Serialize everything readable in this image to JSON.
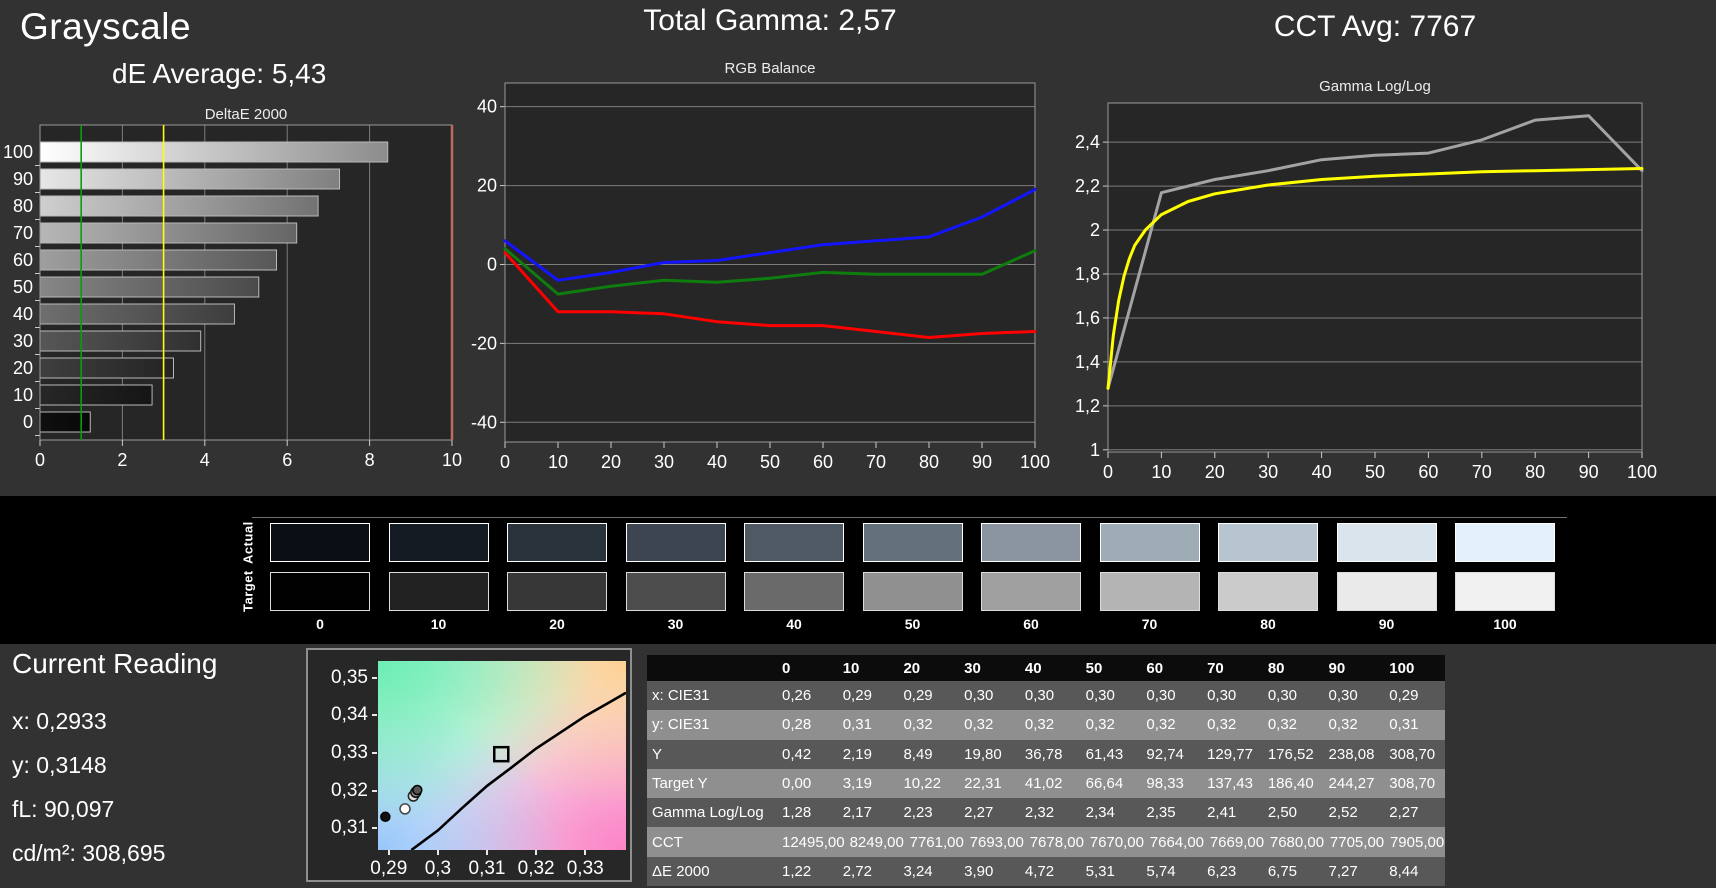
{
  "headers": {
    "grayscale_title": "Grayscale",
    "de_average": "dE Average: 5,43",
    "total_gamma": "Total Gamma: 2,57",
    "cct_avg": "CCT Avg: 7767"
  },
  "current_reading": {
    "title": "Current Reading",
    "x": "x: 0,2933",
    "y": "y: 0,3148",
    "fl": "fL: 90,097",
    "cdm2": "cd/m²: 308,695"
  },
  "swatches": {
    "row_labels": [
      "Actual",
      "Target"
    ],
    "levels": [
      "0",
      "10",
      "20",
      "30",
      "40",
      "50",
      "60",
      "70",
      "80",
      "90",
      "100"
    ],
    "actual": [
      "#0a0e15",
      "#151b23",
      "#2a323c",
      "#3d4650",
      "#4e5963",
      "#64707c",
      "#8b959f",
      "#9eacb5",
      "#b7c5d0",
      "#d9e4ec",
      "#e4f0fc"
    ],
    "target": [
      "#010101",
      "#222222",
      "#373737",
      "#4d4d4d",
      "#6a6a6a",
      "#909090",
      "#a0a0a0",
      "#b4b4b4",
      "#cbcbcb",
      "#eaeaea",
      "#f0f0f0"
    ]
  },
  "style": {
    "background": "#323232",
    "plot_background": "#262626",
    "plot_border": "#9a9a9a",
    "grid_color": "#7d7d7d",
    "tick_color": "#cccccc",
    "text_color": "#ffffff"
  },
  "chart_data": [
    {
      "id": "deltae",
      "type": "bar",
      "title": "DeltaE 2000",
      "orientation": "horizontal",
      "categories": [
        "100",
        "90",
        "80",
        "70",
        "60",
        "50",
        "40",
        "30",
        "20",
        "10",
        "0"
      ],
      "values": [
        8.44,
        7.27,
        6.75,
        6.23,
        5.74,
        5.31,
        4.72,
        3.9,
        3.24,
        2.72,
        1.22
      ],
      "xlim": [
        0,
        10
      ],
      "xticks": [
        0,
        2,
        4,
        6,
        8,
        10
      ],
      "bar_style": "grayscale-gradient",
      "reference_lines": [
        {
          "name": "good-threshold",
          "value": 1,
          "color": "#0e9b0e",
          "width": 1.6
        },
        {
          "name": "warn-threshold",
          "value": 3,
          "color": "#ffff00",
          "width": 1.6
        },
        {
          "name": "max-line",
          "value": 10,
          "color": "#bf6a5f",
          "width": 2.5
        }
      ]
    },
    {
      "id": "rgb_balance",
      "type": "line",
      "title": "RGB Balance",
      "x": [
        0,
        10,
        20,
        30,
        40,
        50,
        60,
        70,
        80,
        90,
        100
      ],
      "series": [
        {
          "name": "Red",
          "color": "#ff0000",
          "values": [
            3,
            -12,
            -12,
            -12.5,
            -14.5,
            -15.5,
            -15.5,
            -17,
            -18.5,
            -17.5,
            -17
          ]
        },
        {
          "name": "Green",
          "color": "#0e7d0e",
          "values": [
            4,
            -7.5,
            -5.5,
            -4,
            -4.5,
            -3.5,
            -2,
            -2.5,
            -2.5,
            -2.5,
            3.5
          ]
        },
        {
          "name": "Blue",
          "color": "#1414ff",
          "values": [
            6,
            -4,
            -2,
            0.5,
            1,
            3,
            5,
            6,
            7,
            12,
            19
          ]
        }
      ],
      "ylim": [
        -45,
        46
      ],
      "yticks": [
        40,
        20,
        0,
        -20,
        -40
      ],
      "ytick_labels": [
        "40",
        "20",
        "0",
        "-20",
        "-40"
      ],
      "xticks": [
        0,
        10,
        20,
        30,
        40,
        50,
        60,
        70,
        80,
        90,
        100
      ]
    },
    {
      "id": "gamma_loglog",
      "type": "line",
      "title": "Gamma Log/Log",
      "series": [
        {
          "name": "Measured gamma",
          "color": "#a3a3a3",
          "x": [
            0,
            10,
            20,
            30,
            40,
            50,
            60,
            70,
            80,
            90,
            100
          ],
          "values": [
            1.28,
            2.17,
            2.23,
            2.27,
            2.32,
            2.34,
            2.35,
            2.41,
            2.5,
            2.52,
            2.27
          ]
        },
        {
          "name": "Target gamma",
          "color": "#ffff00",
          "x": [
            0,
            1,
            2,
            3,
            4,
            5,
            7,
            10,
            15,
            20,
            30,
            40,
            50,
            60,
            70,
            80,
            90,
            100
          ],
          "values": [
            1.28,
            1.52,
            1.68,
            1.79,
            1.87,
            1.93,
            2.0,
            2.07,
            2.13,
            2.165,
            2.205,
            2.23,
            2.245,
            2.255,
            2.265,
            2.27,
            2.275,
            2.28
          ]
        }
      ],
      "ylim": [
        0.99,
        2.578
      ],
      "yticks": [
        2.4,
        2.2,
        2.0,
        1.8,
        1.6,
        1.4,
        1.2,
        1.0
      ],
      "ytick_labels": [
        "2,4",
        "2,2",
        "2",
        "1,8",
        "1,6",
        "1,4",
        "1,2",
        "1"
      ],
      "xticks": [
        0,
        10,
        20,
        30,
        40,
        50,
        60,
        70,
        80,
        90,
        100
      ]
    },
    {
      "id": "cie_diagram",
      "type": "scatter",
      "title": "CIE chromaticity detail",
      "xlim": [
        0.2878,
        0.3383
      ],
      "ylim": [
        0.3043,
        0.3544
      ],
      "xticks": [
        0.29,
        0.3,
        0.31,
        0.32,
        0.33
      ],
      "xtick_labels": [
        "0,29",
        "0,3",
        "0,31",
        "0,32",
        "0,33"
      ],
      "yticks": [
        0.35,
        0.34,
        0.33,
        0.32,
        0.31
      ],
      "ytick_labels": [
        "0,35",
        "0,34",
        "0,33",
        "0,32",
        "0,31"
      ],
      "locus": [
        [
          0.2946,
          0.3043
        ],
        [
          0.3,
          0.3095
        ],
        [
          0.305,
          0.3155
        ],
        [
          0.31,
          0.3213
        ],
        [
          0.315,
          0.3262
        ],
        [
          0.32,
          0.3312
        ],
        [
          0.325,
          0.3355
        ],
        [
          0.33,
          0.3398
        ],
        [
          0.335,
          0.3435
        ],
        [
          0.3383,
          0.346
        ]
      ],
      "target_square": {
        "x": 0.3129,
        "y": 0.3297
      },
      "points": [
        {
          "x": 0.2893,
          "y": 0.3131,
          "fill": "#111111",
          "stroke": "#000000",
          "r": 4.5
        },
        {
          "x": 0.2933,
          "y": 0.3152,
          "fill": "#ffffff",
          "stroke": "#444444",
          "r": 5
        },
        {
          "x": 0.295,
          "y": 0.3186,
          "fill": "#dddddd",
          "stroke": "#222222",
          "r": 5
        },
        {
          "x": 0.2955,
          "y": 0.3196,
          "fill": "#8a8a8a",
          "stroke": "#111111",
          "r": 5
        },
        {
          "x": 0.2958,
          "y": 0.3202,
          "fill": "#555555",
          "stroke": "#000000",
          "r": 4.5
        }
      ]
    },
    {
      "id": "measurement_table",
      "type": "table",
      "columns": [
        "",
        "0",
        "10",
        "20",
        "30",
        "40",
        "50",
        "60",
        "70",
        "80",
        "90",
        "100"
      ],
      "rows": [
        {
          "label": "x: CIE31",
          "values": [
            "0,26",
            "0,29",
            "0,29",
            "0,30",
            "0,30",
            "0,30",
            "0,30",
            "0,30",
            "0,30",
            "0,30",
            "0,29"
          ]
        },
        {
          "label": "y: CIE31",
          "values": [
            "0,28",
            "0,31",
            "0,32",
            "0,32",
            "0,32",
            "0,32",
            "0,32",
            "0,32",
            "0,32",
            "0,32",
            "0,31"
          ]
        },
        {
          "label": "Y",
          "values": [
            "0,42",
            "2,19",
            "8,49",
            "19,80",
            "36,78",
            "61,43",
            "92,74",
            "129,77",
            "176,52",
            "238,08",
            "308,70"
          ]
        },
        {
          "label": "Target Y",
          "values": [
            "0,00",
            "3,19",
            "10,22",
            "22,31",
            "41,02",
            "66,64",
            "98,33",
            "137,43",
            "186,40",
            "244,27",
            "308,70"
          ]
        },
        {
          "label": "Gamma Log/Log",
          "values": [
            "1,28",
            "2,17",
            "2,23",
            "2,27",
            "2,32",
            "2,34",
            "2,35",
            "2,41",
            "2,50",
            "2,52",
            "2,27"
          ]
        },
        {
          "label": "CCT",
          "values": [
            "12495,00",
            "8249,00",
            "7761,00",
            "7693,00",
            "7678,00",
            "7670,00",
            "7664,00",
            "7669,00",
            "7680,00",
            "7705,00",
            "7905,00"
          ]
        },
        {
          "label": "ΔE 2000",
          "values": [
            "1,22",
            "2,72",
            "3,24",
            "3,90",
            "4,72",
            "5,31",
            "5,74",
            "6,23",
            "6,75",
            "7,27",
            "8,44"
          ]
        }
      ],
      "row_colors": [
        "#585858",
        "#8f8f8f"
      ],
      "header_bg": "#0c0c0c"
    }
  ]
}
